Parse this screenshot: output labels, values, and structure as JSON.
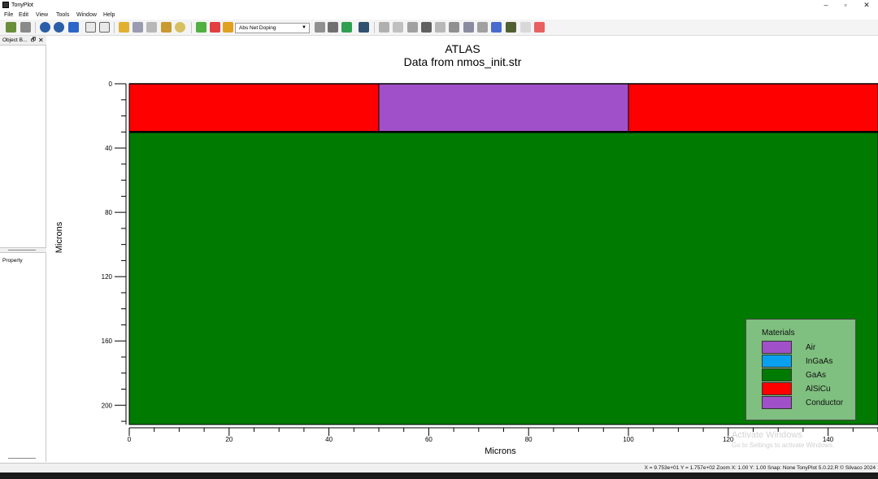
{
  "window": {
    "title": "TonyPlot",
    "controls": {
      "minimize": "–",
      "maximize": "▫",
      "close": "✕"
    }
  },
  "menu": [
    "File",
    "Edit",
    "View",
    "Tools",
    "Window",
    "Help"
  ],
  "toolbar": {
    "select_value": "Abs Net Doping",
    "icons": [
      "open-icon",
      "save-icon",
      "zoom-in-icon",
      "zoom-out-icon",
      "zoom-fit-icon",
      "zoom-prev-icon",
      "zoom-next-icon",
      "mesh-icon-1",
      "mesh-icon-2",
      "mesh-icon-3",
      "mesh-icon-4",
      "mesh-icon-5",
      "material-icon-1",
      "material-icon-2",
      "material-icon-3",
      "tools-icon-1",
      "tools-icon-2",
      "tools-icon-3",
      "display-icon",
      "cut-icon",
      "probe-icon",
      "scissors-icon",
      "ruler-icon",
      "line-icon",
      "flag-icon",
      "mesh-grid-icon",
      "annotate-icon",
      "tag-icon",
      "film-icon",
      "edit-icon",
      "legend-icon"
    ]
  },
  "left_panel": {
    "object_browser_title": "Object B...",
    "object_browser_pin": "🗗",
    "object_browser_close": "✕",
    "property_title": "Property"
  },
  "plot": {
    "title": "ATLAS",
    "subtitle": "Data from nmos_init.str"
  },
  "chart_data": {
    "type": "heatmap",
    "xlabel": "Microns",
    "ylabel": "Microns",
    "xlim": [
      0,
      150
    ],
    "ylim": [
      0,
      212
    ],
    "x_ticks": [
      0,
      20,
      40,
      60,
      80,
      100,
      120,
      140
    ],
    "y_ticks": [
      0,
      40,
      80,
      120,
      160,
      200
    ],
    "regions": [
      {
        "material": "AlSiCu",
        "x": [
          0,
          50
        ],
        "y": [
          0,
          30
        ],
        "color": "#ff0000"
      },
      {
        "material": "Conductor",
        "x": [
          50,
          100
        ],
        "y": [
          0,
          30
        ],
        "color": "#a050c8"
      },
      {
        "material": "AlSiCu",
        "x": [
          100,
          150
        ],
        "y": [
          0,
          30
        ],
        "color": "#ff0000"
      },
      {
        "material": "GaAs",
        "x": [
          0,
          150
        ],
        "y": [
          30,
          212
        ],
        "color": "#007a00"
      }
    ]
  },
  "legend": {
    "title": "Materials",
    "items": [
      {
        "label": "Air",
        "color": "#a050c8"
      },
      {
        "label": "InGaAs",
        "color": "#0aa0f0"
      },
      {
        "label": "GaAs",
        "color": "#007a00"
      },
      {
        "label": "AlSiCu",
        "color": "#ff0000"
      },
      {
        "label": "Conductor",
        "color": "#a050c8"
      }
    ]
  },
  "watermark": {
    "title": "Activate Windows",
    "subtitle": "Go to Settings to activate Windows."
  },
  "status": {
    "text": "X = 9.753e+01   Y = 1.757e+02   Zoom X: 1.00  Y: 1.00   Snap: None   TonyPlot 5.0.22.R © Silvaco 2024"
  }
}
